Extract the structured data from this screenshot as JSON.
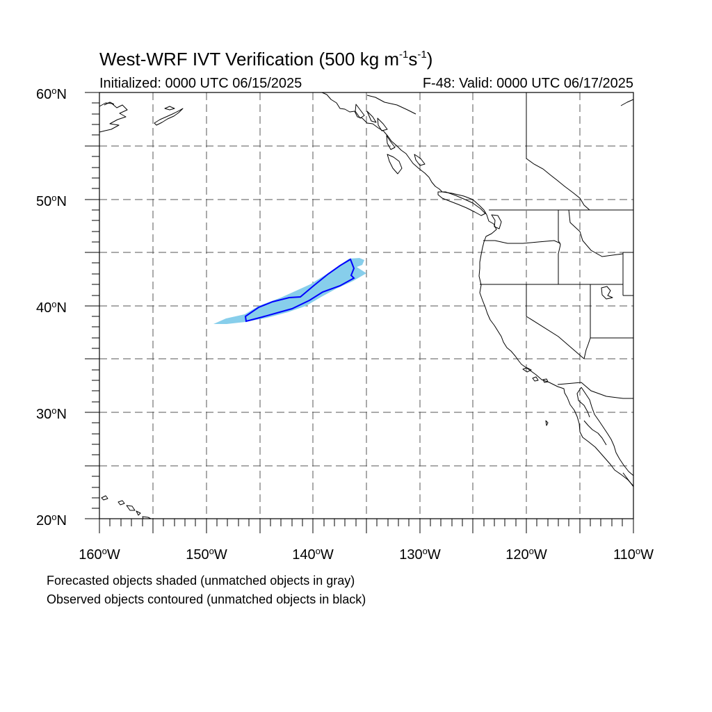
{
  "title": {
    "main": "West-WRF IVT Verification (500 kg m",
    "sup1": "-1",
    "mid": "s",
    "sup2": "-1",
    "close": ")"
  },
  "initialized": "Initialized: 0000 UTC 06/15/2025",
  "valid": "F-48: Valid: 0000 UTC 06/17/2025",
  "lat_labels": [
    {
      "value": "60",
      "hemi": "N"
    },
    {
      "value": "50",
      "hemi": "N"
    },
    {
      "value": "40",
      "hemi": "N"
    },
    {
      "value": "30",
      "hemi": "N"
    },
    {
      "value": "20",
      "hemi": "N"
    }
  ],
  "lon_labels": [
    {
      "value": "160",
      "hemi": "W"
    },
    {
      "value": "150",
      "hemi": "W"
    },
    {
      "value": "140",
      "hemi": "W"
    },
    {
      "value": "130",
      "hemi": "W"
    },
    {
      "value": "120",
      "hemi": "W"
    },
    {
      "value": "110",
      "hemi": "W"
    }
  ],
  "notes": {
    "line1": "Forecasted objects shaded (unmatched objects in gray)",
    "line2": "Observed objects contoured (unmatched objects in black)"
  },
  "colors": {
    "forecast_fill": "#87ceeb",
    "observed_contour": "#0000ff",
    "coastline": "#000000",
    "grid": "#555555"
  },
  "map": {
    "lon_range": [
      -160,
      -110
    ],
    "lat_range": [
      20,
      60
    ],
    "grid_step_deg": 5
  }
}
